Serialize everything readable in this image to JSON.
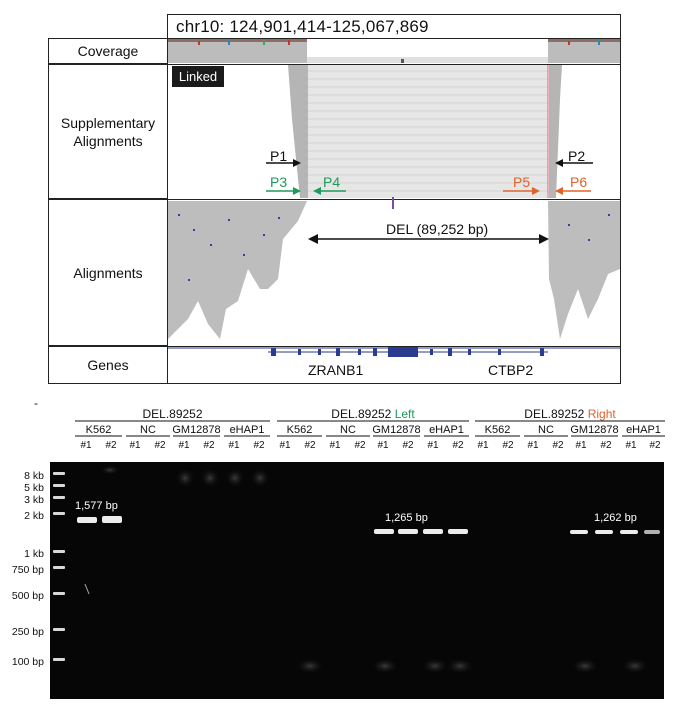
{
  "igv": {
    "locus": "chr10: 124,901,414-125,067,869",
    "tracks": {
      "coverage": "Coverage",
      "supplementary": "Supplementary Alignments",
      "alignments": "Alignments",
      "genes": "Genes"
    },
    "linked_badge": "Linked",
    "primers": {
      "p1": "P1",
      "p2": "P2",
      "p3": "P3",
      "p4": "P4",
      "p5": "P5",
      "p6": "P6"
    },
    "deletion_label": "DEL (89,252 bp)",
    "genes": {
      "left": "ZRANB1",
      "right": "CTBP2"
    }
  },
  "colors": {
    "green_primer": "#1e9a5a",
    "orange_primer": "#e0622a",
    "read_gray": "#bdbdbd",
    "gene_blue": "#2b3b8f"
  },
  "gel": {
    "panel_dash": "-",
    "groups": [
      {
        "title": "DEL.89252",
        "suffix": ""
      },
      {
        "title": "DEL.89252",
        "suffix": "Left"
      },
      {
        "title": "DEL.89252",
        "suffix": "Right"
      }
    ],
    "lanes": [
      "K562",
      "NC",
      "GM12878",
      "eHAP1"
    ],
    "wells": [
      "#1",
      "#2"
    ],
    "ladder": [
      "8 kb",
      "5 kb",
      "3 kb",
      "2 kb",
      "1 kb",
      "750 bp",
      "500 bp",
      "250 bp",
      "100 bp"
    ],
    "band_labels": {
      "g1": "1,577 bp",
      "g2": "1,265 bp",
      "g3": "1,262 bp"
    }
  }
}
